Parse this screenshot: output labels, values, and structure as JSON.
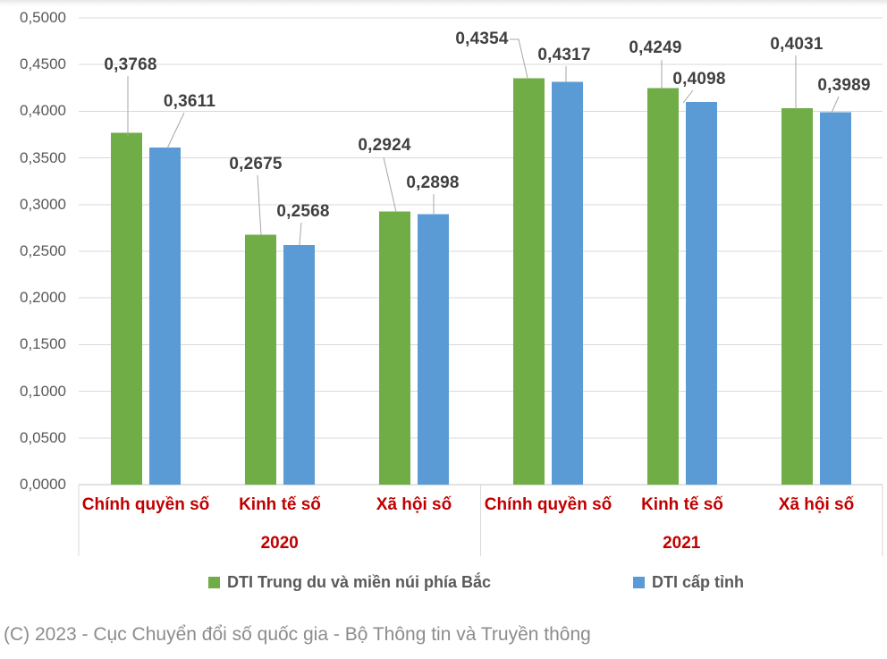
{
  "chart_data": {
    "type": "bar",
    "title": "",
    "ylim": [
      0,
      0.5
    ],
    "y_tick_step": 0.05,
    "y_ticks": [
      "0,0000",
      "0,0500",
      "0,1000",
      "0,1500",
      "0,2000",
      "0,2500",
      "0,3000",
      "0,3500",
      "0,4000",
      "0,4500",
      "0,5000"
    ],
    "grid": true,
    "legend_position": "bottom",
    "groups": [
      {
        "label": "2020",
        "categories": [
          "Chính quyền số",
          "Kinh tế số",
          "Xã hội số"
        ]
      },
      {
        "label": "2021",
        "categories": [
          "Chính quyền số",
          "Kinh tế số",
          "Xã hội số"
        ]
      }
    ],
    "series": [
      {
        "name": "DTI Trung du và miền núi phía Bắc",
        "color": "#70AD47",
        "values": [
          0.3768,
          0.2675,
          0.2924,
          0.4354,
          0.4249,
          0.4031
        ],
        "value_labels": [
          "0,3768",
          "0,2675",
          "0,2924",
          "0,4354",
          "0,4249",
          "0,4031"
        ]
      },
      {
        "name": "DTI cấp tỉnh",
        "color": "#5B9BD5",
        "values": [
          0.3611,
          0.2568,
          0.2898,
          0.4317,
          0.4098,
          0.3989
        ],
        "value_labels": [
          "0,3611",
          "0,2568",
          "0,2898",
          "0,4317",
          "0,4098",
          "0,3989"
        ]
      }
    ],
    "colors": {
      "category_label": "#C00000",
      "year_label": "#C00000",
      "tick_label": "#595959",
      "value_label": "#404040",
      "gridline": "#D9D9D9",
      "axis_line": "#C6C6C6",
      "leader_line": "#A6A6A6"
    }
  },
  "footer": {
    "copyright": "(C) 2023 - Cục Chuyển đổi số quốc gia - Bộ Thông tin và Truyền thông"
  }
}
